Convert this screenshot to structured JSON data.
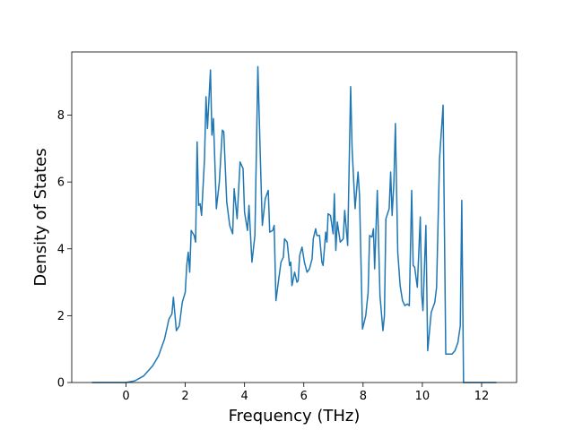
{
  "chart_data": {
    "type": "line",
    "xlabel": "Frequency (THz)",
    "ylabel": "Density of States",
    "x": [
      -1.15,
      0.0,
      0.3,
      0.6,
      0.9,
      1.1,
      1.3,
      1.45,
      1.55,
      1.6,
      1.7,
      1.8,
      1.9,
      2.0,
      2.05,
      2.1,
      2.15,
      2.2,
      2.3,
      2.35,
      2.4,
      2.45,
      2.5,
      2.55,
      2.65,
      2.7,
      2.75,
      2.85,
      2.9,
      2.95,
      3.05,
      3.15,
      3.25,
      3.3,
      3.4,
      3.5,
      3.6,
      3.65,
      3.75,
      3.85,
      3.95,
      4.0,
      4.1,
      4.15,
      4.25,
      4.35,
      4.45,
      4.55,
      4.6,
      4.7,
      4.8,
      4.85,
      4.95,
      5.0,
      5.06,
      5.14,
      5.23,
      5.31,
      5.35,
      5.44,
      5.52,
      5.56,
      5.6,
      5.69,
      5.77,
      5.81,
      5.86,
      5.94,
      6.02,
      6.11,
      6.19,
      6.28,
      6.32,
      6.4,
      6.44,
      6.53,
      6.61,
      6.65,
      6.74,
      6.78,
      6.82,
      6.9,
      6.99,
      7.03,
      7.08,
      7.13,
      7.23,
      7.33,
      7.38,
      7.48,
      7.58,
      7.63,
      7.73,
      7.83,
      7.88,
      7.98,
      8.09,
      8.17,
      8.22,
      8.3,
      8.35,
      8.39,
      8.48,
      8.57,
      8.67,
      8.72,
      8.77,
      8.88,
      8.93,
      8.98,
      9.04,
      9.09,
      9.17,
      9.25,
      9.33,
      9.41,
      9.49,
      9.56,
      9.64,
      9.69,
      9.74,
      9.83,
      9.93,
      9.98,
      10.02,
      10.12,
      10.18,
      10.3,
      10.42,
      10.48,
      10.58,
      10.7,
      10.79,
      11.0,
      11.1,
      11.2,
      11.28,
      11.33,
      11.39,
      12.5
    ],
    "series": [
      {
        "color": "#1f77b4",
        "values": [
          0,
          0,
          0.05,
          0.2,
          0.5,
          0.8,
          1.3,
          1.9,
          2.05,
          2.55,
          1.55,
          1.7,
          2.4,
          2.7,
          3.5,
          3.9,
          3.3,
          4.55,
          4.4,
          4.2,
          7.2,
          5.3,
          5.35,
          5.0,
          6.7,
          8.55,
          7.6,
          9.35,
          7.4,
          7.9,
          5.2,
          6.0,
          7.55,
          7.5,
          5.4,
          4.7,
          4.45,
          5.8,
          4.9,
          6.6,
          6.4,
          5.1,
          4.55,
          5.3,
          3.6,
          4.4,
          9.45,
          6.2,
          4.7,
          5.5,
          5.75,
          4.5,
          4.55,
          4.7,
          2.45,
          3.0,
          3.6,
          3.75,
          4.3,
          4.2,
          3.5,
          3.6,
          2.9,
          3.3,
          3.0,
          3.05,
          3.8,
          4.05,
          3.6,
          3.3,
          3.4,
          3.7,
          4.3,
          4.6,
          4.4,
          4.4,
          3.6,
          3.5,
          4.5,
          4.2,
          5.05,
          5.0,
          4.45,
          5.65,
          3.95,
          4.8,
          4.2,
          4.3,
          5.15,
          4.1,
          8.85,
          7.0,
          5.2,
          6.3,
          5.6,
          1.6,
          2.0,
          2.7,
          4.4,
          4.35,
          4.6,
          3.4,
          5.75,
          2.6,
          1.55,
          2.0,
          4.9,
          5.2,
          6.3,
          5.0,
          6.0,
          7.75,
          3.9,
          2.9,
          2.45,
          2.3,
          2.35,
          2.3,
          5.75,
          3.5,
          3.45,
          2.85,
          4.95,
          2.6,
          2.15,
          4.7,
          0.95,
          2.1,
          2.4,
          2.85,
          6.7,
          8.3,
          0.85,
          0.85,
          0.95,
          1.2,
          1.7,
          5.45,
          0,
          0
        ]
      }
    ],
    "xlim": [
      -1.83,
      13.18
    ],
    "ylim": [
      0,
      9.89
    ],
    "xticks": [
      0,
      2,
      4,
      6,
      8,
      10,
      12
    ],
    "yticks": [
      0,
      2,
      4,
      6,
      8
    ]
  }
}
